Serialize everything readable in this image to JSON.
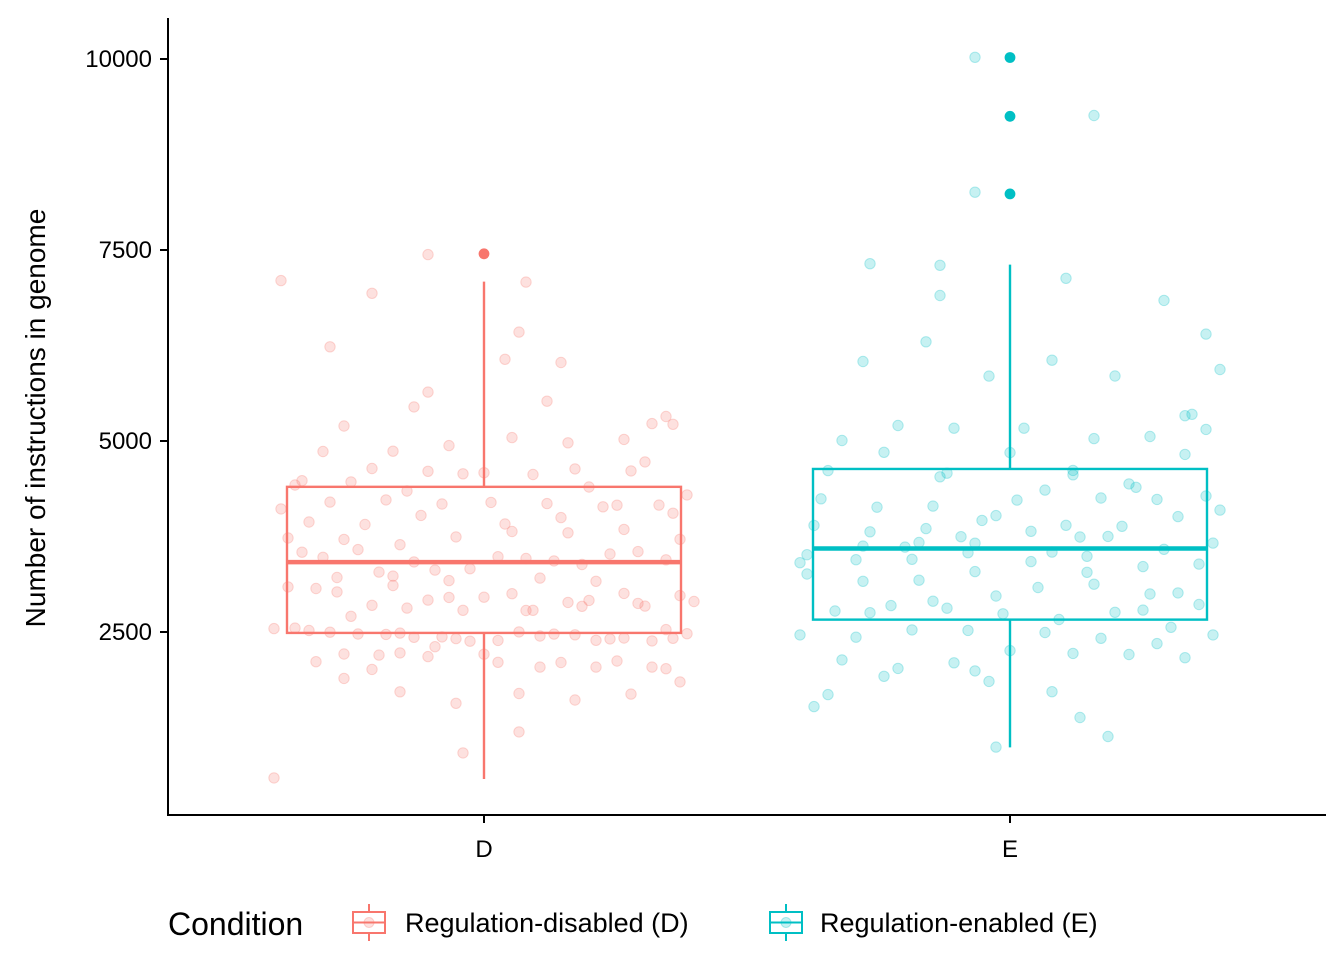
{
  "chart_data": {
    "type": "box",
    "ylabel": "Number of instructions in genome",
    "xlabel": "",
    "categories": [
      "D",
      "E"
    ],
    "y_ticks": [
      2500,
      5000,
      7500,
      10000
    ],
    "y_tick_labels": [
      "2500",
      "5000",
      "7500",
      "10000"
    ],
    "ylim": [
      -0.5,
      10500
    ],
    "grid": false,
    "legend": {
      "title": "Condition",
      "position": "bottom",
      "entries": [
        {
          "label": "Regulation-disabled (D)",
          "color": "#F8766D"
        },
        {
          "label": "Regulation-enabled (E)",
          "color": "#00BFC4"
        }
      ]
    },
    "series": [
      {
        "category": "D",
        "color": "#F8766D",
        "box": {
          "whisker_low": 576,
          "q1": 2488,
          "median": 3414,
          "q3": 4400,
          "whisker_high": 7086
        },
        "outliers": [
          7450
        ],
        "points": [
          [
            -0.27,
            2551
          ],
          [
            -0.2,
            2212
          ],
          [
            -0.12,
            2486
          ],
          [
            -0.04,
            2414
          ],
          [
            0.05,
            2501
          ],
          [
            0.13,
            2463
          ],
          [
            0.2,
            2421
          ],
          [
            0.27,
            2418
          ],
          [
            -0.25,
            2519
          ],
          [
            -0.18,
            2474
          ],
          [
            -0.1,
            2431
          ],
          [
            -0.02,
            2379
          ],
          [
            0.08,
            2447
          ],
          [
            0.16,
            2392
          ],
          [
            0.24,
            2383
          ],
          [
            -0.22,
            2498
          ],
          [
            -0.14,
            2469
          ],
          [
            -0.06,
            2436
          ],
          [
            0.02,
            2390
          ],
          [
            0.1,
            2473
          ],
          [
            0.18,
            2410
          ],
          [
            0.26,
            2532
          ],
          [
            -0.3,
            2545
          ],
          [
            0.29,
            2478
          ],
          [
            -0.28,
            3090
          ],
          [
            -0.21,
            3025
          ],
          [
            -0.13,
            3108
          ],
          [
            -0.05,
            2953
          ],
          [
            0.04,
            3001
          ],
          [
            0.12,
            2887
          ],
          [
            0.2,
            3005
          ],
          [
            0.28,
            2976
          ],
          [
            -0.24,
            3070
          ],
          [
            -0.16,
            2850
          ],
          [
            -0.08,
            2918
          ],
          [
            0.0,
            2955
          ],
          [
            0.07,
            2784
          ],
          [
            0.15,
            2914
          ],
          [
            0.23,
            2839
          ],
          [
            -0.19,
            2706
          ],
          [
            -0.11,
            2813
          ],
          [
            -0.03,
            2784
          ],
          [
            0.06,
            2781
          ],
          [
            0.14,
            2836
          ],
          [
            0.22,
            2875
          ],
          [
            0.3,
            2899
          ],
          [
            -0.26,
            3545
          ],
          [
            -0.18,
            3578
          ],
          [
            -0.1,
            3417
          ],
          [
            -0.02,
            3328
          ],
          [
            0.06,
            3462
          ],
          [
            0.14,
            3383
          ],
          [
            0.22,
            3553
          ],
          [
            -0.23,
            3478
          ],
          [
            -0.15,
            3284
          ],
          [
            -0.07,
            3310
          ],
          [
            0.02,
            3486
          ],
          [
            0.1,
            3430
          ],
          [
            0.18,
            3521
          ],
          [
            0.26,
            3445
          ],
          [
            -0.21,
            3213
          ],
          [
            -0.13,
            3232
          ],
          [
            -0.05,
            3173
          ],
          [
            0.08,
            3206
          ],
          [
            0.16,
            3163
          ],
          [
            -0.28,
            3731
          ],
          [
            -0.2,
            3712
          ],
          [
            -0.12,
            3643
          ],
          [
            -0.04,
            3745
          ],
          [
            0.04,
            3815
          ],
          [
            0.12,
            3799
          ],
          [
            0.2,
            3843
          ],
          [
            0.28,
            3714
          ],
          [
            -0.25,
            3940
          ],
          [
            -0.17,
            3907
          ],
          [
            -0.09,
            4026
          ],
          [
            0.03,
            3913
          ],
          [
            0.11,
            3998
          ],
          [
            0.19,
            4160
          ],
          [
            0.27,
            4055
          ],
          [
            -0.29,
            4111
          ],
          [
            -0.22,
            4200
          ],
          [
            -0.14,
            4229
          ],
          [
            -0.06,
            4176
          ],
          [
            0.01,
            4196
          ],
          [
            0.09,
            4180
          ],
          [
            0.17,
            4139
          ],
          [
            0.25,
            4161
          ],
          [
            -0.27,
            4424
          ],
          [
            -0.19,
            4465
          ],
          [
            -0.11,
            4346
          ],
          [
            -0.03,
            4571
          ],
          [
            0.07,
            4561
          ],
          [
            0.15,
            4398
          ],
          [
            0.23,
            4726
          ],
          [
            0.29,
            4295
          ],
          [
            -0.26,
            4480
          ],
          [
            -0.16,
            4640
          ],
          [
            -0.08,
            4603
          ],
          [
            0.0,
            4585
          ],
          [
            0.13,
            4635
          ],
          [
            0.21,
            4608
          ],
          [
            -0.23,
            4862
          ],
          [
            -0.13,
            4867
          ],
          [
            -0.05,
            4940
          ],
          [
            0.04,
            5045
          ],
          [
            0.12,
            4976
          ],
          [
            0.2,
            5021
          ],
          [
            0.27,
            5218
          ],
          [
            -0.2,
            5196
          ],
          [
            -0.1,
            5446
          ],
          [
            0.09,
            5521
          ],
          [
            0.24,
            5228
          ],
          [
            0.26,
            5321
          ],
          [
            -0.08,
            5640
          ],
          [
            0.03,
            6069
          ],
          [
            0.11,
            6027
          ],
          [
            -0.22,
            6233
          ],
          [
            0.05,
            6425
          ],
          [
            -0.16,
            6933
          ],
          [
            -0.29,
            7100
          ],
          [
            -0.08,
            7440
          ],
          [
            0.06,
            7080
          ],
          [
            -0.24,
            2111
          ],
          [
            -0.16,
            2010
          ],
          [
            -0.08,
            2178
          ],
          [
            0.0,
            2209
          ],
          [
            0.08,
            2041
          ],
          [
            0.16,
            2040
          ],
          [
            0.24,
            2040
          ],
          [
            -0.2,
            1893
          ],
          [
            -0.12,
            1717
          ],
          [
            -0.04,
            1567
          ],
          [
            0.05,
            1695
          ],
          [
            0.13,
            1610
          ],
          [
            0.21,
            1687
          ],
          [
            0.28,
            1847
          ],
          [
            -0.15,
            2197
          ],
          [
            -0.07,
            2308
          ],
          [
            0.02,
            2104
          ],
          [
            0.11,
            2101
          ],
          [
            0.19,
            2121
          ],
          [
            0.26,
            2020
          ],
          [
            -0.03,
            918
          ],
          [
            0.05,
            1193
          ],
          [
            -0.3,
            590
          ],
          [
            -0.12,
            2226
          ]
        ]
      },
      {
        "category": "E",
        "color": "#00BFC4",
        "box": {
          "whisker_low": 990,
          "q1": 2662,
          "median": 3593,
          "q3": 4634,
          "whisker_high": 7309
        },
        "outliers": [
          8234,
          9250,
          10019
        ],
        "points": [
          [
            -0.3,
            3407
          ],
          [
            -0.22,
            3446
          ],
          [
            -0.14,
            3451
          ],
          [
            -0.06,
            3538
          ],
          [
            0.03,
            3421
          ],
          [
            0.11,
            3491
          ],
          [
            0.19,
            3356
          ],
          [
            0.27,
            3389
          ],
          [
            -0.29,
            3512
          ],
          [
            -0.21,
            3624
          ],
          [
            -0.13,
            3671
          ],
          [
            -0.05,
            3662
          ],
          [
            0.06,
            3546
          ],
          [
            0.14,
            3751
          ],
          [
            0.22,
            3582
          ],
          [
            0.29,
            3663
          ],
          [
            -0.28,
            3895
          ],
          [
            -0.2,
            3812
          ],
          [
            -0.12,
            3853
          ],
          [
            -0.04,
            3961
          ],
          [
            0.08,
            3897
          ],
          [
            0.16,
            3883
          ],
          [
            0.24,
            4011
          ],
          [
            0.3,
            4095
          ],
          [
            -0.27,
            4244
          ],
          [
            -0.19,
            4133
          ],
          [
            -0.11,
            4148
          ],
          [
            -0.02,
            4024
          ],
          [
            0.05,
            4357
          ],
          [
            0.13,
            4254
          ],
          [
            0.21,
            4236
          ],
          [
            0.28,
            4280
          ],
          [
            -0.26,
            4613
          ],
          [
            -0.18,
            4852
          ],
          [
            -0.1,
            4531
          ],
          [
            0.0,
            4848
          ],
          [
            0.09,
            4557
          ],
          [
            0.17,
            4439
          ],
          [
            0.25,
            4824
          ],
          [
            -0.24,
            5007
          ],
          [
            -0.16,
            5203
          ],
          [
            -0.08,
            5168
          ],
          [
            0.02,
            5168
          ],
          [
            0.12,
            5031
          ],
          [
            0.2,
            5059
          ],
          [
            0.28,
            5152
          ],
          [
            -0.21,
            6040
          ],
          [
            -0.12,
            6298
          ],
          [
            -0.03,
            5850
          ],
          [
            0.06,
            6058
          ],
          [
            0.15,
            5851
          ],
          [
            0.22,
            6840
          ],
          [
            0.28,
            6399
          ],
          [
            -0.2,
            7321
          ],
          [
            -0.1,
            7300
          ],
          [
            0.08,
            7129
          ],
          [
            -0.29,
            3259
          ],
          [
            -0.21,
            3164
          ],
          [
            -0.13,
            3178
          ],
          [
            -0.05,
            3290
          ],
          [
            0.04,
            3082
          ],
          [
            0.12,
            3126
          ],
          [
            0.2,
            2998
          ],
          [
            0.27,
            2860
          ],
          [
            -0.25,
            2775
          ],
          [
            -0.17,
            2846
          ],
          [
            -0.09,
            2811
          ],
          [
            -0.01,
            2738
          ],
          [
            0.07,
            2663
          ],
          [
            0.15,
            2758
          ],
          [
            0.23,
            2562
          ],
          [
            -0.3,
            2462
          ],
          [
            -0.22,
            2432
          ],
          [
            -0.14,
            2527
          ],
          [
            -0.06,
            2521
          ],
          [
            0.05,
            2494
          ],
          [
            0.13,
            2417
          ],
          [
            0.21,
            2348
          ],
          [
            0.29,
            2462
          ],
          [
            -0.24,
            2135
          ],
          [
            -0.16,
            2024
          ],
          [
            -0.08,
            2097
          ],
          [
            0.0,
            2257
          ],
          [
            0.09,
            2220
          ],
          [
            0.17,
            2206
          ],
          [
            0.25,
            2163
          ],
          [
            -0.26,
            1681
          ],
          [
            -0.18,
            1920
          ],
          [
            -0.03,
            1854
          ],
          [
            0.06,
            1718
          ],
          [
            0.1,
            1381
          ],
          [
            0.14,
            1132
          ],
          [
            -0.02,
            993
          ],
          [
            -0.28,
            1523
          ],
          [
            -0.05,
            1991
          ],
          [
            -0.2,
            2752
          ],
          [
            -0.11,
            2903
          ],
          [
            -0.02,
            2971
          ],
          [
            0.11,
            3281
          ],
          [
            0.19,
            2786
          ],
          [
            0.24,
            3012
          ],
          [
            -0.15,
            3611
          ],
          [
            -0.07,
            3748
          ],
          [
            0.03,
            3818
          ],
          [
            0.1,
            3743
          ],
          [
            0.18,
            4394
          ],
          [
            0.26,
            5350
          ],
          [
            -0.09,
            4578
          ],
          [
            0.01,
            4227
          ],
          [
            0.09,
            4615
          ],
          [
            0.25,
            5331
          ],
          [
            0.3,
            5936
          ],
          [
            -0.1,
            6905
          ],
          [
            -0.05,
            8256
          ],
          [
            -0.05,
            10022
          ],
          [
            0.12,
            9260
          ]
        ]
      }
    ]
  }
}
